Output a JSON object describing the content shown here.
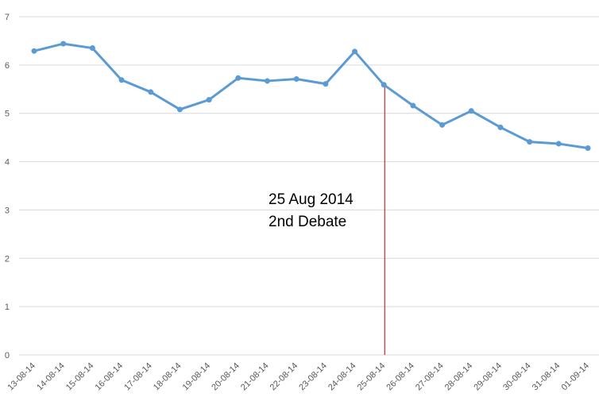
{
  "chart_data": {
    "type": "line",
    "title": "",
    "xlabel": "",
    "ylabel": "",
    "ylim": [
      0,
      7
    ],
    "y_ticks": [
      0,
      1,
      2,
      3,
      4,
      5,
      6,
      7
    ],
    "grid": "horizontal",
    "categories": [
      "13-08-14",
      "14-08-14",
      "15-08-14",
      "16-08-14",
      "17-08-14",
      "18-08-14",
      "19-08-14",
      "20-08-14",
      "21-08-14",
      "22-08-14",
      "23-08-14",
      "24-08-14",
      "25-08-14",
      "26-08-14",
      "27-08-14",
      "28-08-14",
      "29-08-14",
      "30-08-14",
      "31-08-14",
      "01-09-14"
    ],
    "series": [
      {
        "values": [
          6.29,
          6.44,
          6.35,
          5.69,
          5.44,
          5.08,
          5.28,
          5.73,
          5.67,
          5.71,
          5.61,
          6.28,
          5.59,
          5.16,
          4.76,
          5.05,
          4.71,
          4.41,
          4.37,
          4.28
        ]
      }
    ],
    "annotation": {
      "at_category": "25-08-14",
      "line1": "25 Aug 2014",
      "line2": "2nd Debate"
    },
    "colors": {
      "series": "#5b9bd5",
      "marker_line": "#c00000",
      "grid": "#d9d9d9",
      "tick_text": "#595959"
    }
  }
}
